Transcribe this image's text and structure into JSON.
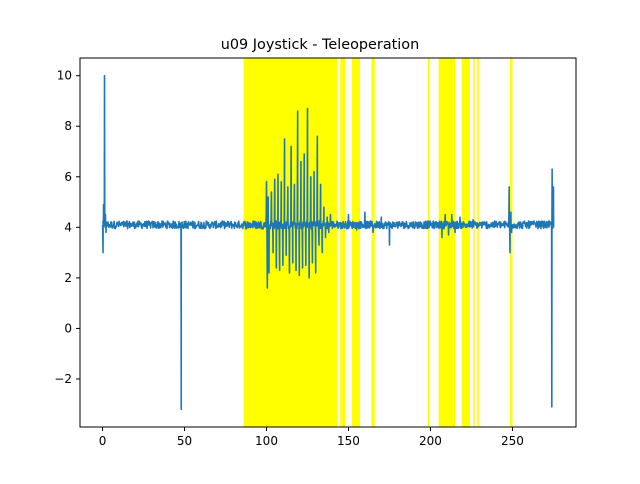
{
  "chart_data": {
    "type": "line",
    "title": "u09 Joystick - Teleoperation",
    "xlabel": "",
    "ylabel": "",
    "xlim": [
      -13.75,
      288.75
    ],
    "ylim": [
      -3.9,
      10.7
    ],
    "xticks": [
      0,
      50,
      100,
      150,
      200,
      250
    ],
    "xtick_labels": [
      "0",
      "50",
      "100",
      "150",
      "200",
      "250"
    ],
    "yticks": [
      -2,
      0,
      2,
      4,
      6,
      8,
      10
    ],
    "ytick_labels": [
      "−2",
      "0",
      "2",
      "4",
      "6",
      "8",
      "10"
    ],
    "grid": false,
    "legend": "none",
    "line_color": "#1f77b4",
    "highlight_color": "#ffff00",
    "highlight_regions": [
      [
        86,
        143
      ],
      [
        145,
        148
      ],
      [
        152,
        157
      ],
      [
        164,
        166
      ],
      [
        198.5,
        199.5
      ],
      [
        205,
        215
      ],
      [
        219,
        224
      ],
      [
        226,
        227
      ],
      [
        228.5,
        229.5
      ],
      [
        248.5,
        250
      ]
    ],
    "series": [
      {
        "baseline": 4.1,
        "noise_amplitude": 0.15,
        "x_range": [
          0,
          275
        ],
        "x": [
          0,
          0.3,
          0.6,
          0.9,
          1.2,
          1.5,
          1.8,
          2.1,
          2.4,
          3,
          5,
          20,
          40,
          47.5,
          47.8,
          48,
          48.2,
          48.5,
          60,
          86,
          95,
          99.5,
          100,
          100.5,
          101,
          101.5,
          102,
          103,
          104,
          105,
          106,
          107,
          108,
          109,
          110,
          111,
          112,
          113,
          114,
          115,
          116,
          117,
          118,
          119,
          120,
          121,
          122,
          123,
          124,
          125,
          126,
          127,
          128,
          129,
          130,
          131,
          132,
          133,
          134,
          135,
          136,
          137,
          138,
          139,
          140,
          145,
          150,
          155,
          160,
          165,
          170,
          175,
          180,
          190,
          200,
          205,
          207,
          209,
          211,
          213,
          215,
          218,
          222,
          226,
          230,
          240,
          247.5,
          248,
          248.5,
          249,
          249.5,
          250,
          255,
          260,
          265,
          272,
          273.5,
          273.8,
          274,
          274.2,
          274.4,
          274.6,
          275
        ],
        "y": [
          4.1,
          3.0,
          4.9,
          4.1,
          10.0,
          4.2,
          4.5,
          3.8,
          4.2,
          4.1,
          4.15,
          4.1,
          4.2,
          4.1,
          4.0,
          -3.2,
          4.0,
          4.2,
          4.1,
          4.2,
          4.1,
          4.2,
          5.8,
          1.6,
          5.2,
          2.2,
          4.0,
          5.4,
          3.0,
          5.9,
          2.4,
          6.1,
          2.3,
          5.8,
          2.5,
          7.5,
          2.9,
          5.6,
          2.2,
          7.2,
          2.6,
          5.7,
          2.3,
          8.6,
          2.1,
          6.6,
          2.4,
          6.9,
          2.5,
          8.7,
          2.0,
          6.0,
          2.6,
          6.2,
          2.2,
          7.6,
          3.3,
          5.7,
          3.0,
          4.8,
          3.6,
          4.4,
          3.8,
          4.5,
          4.2,
          4.1,
          4.5,
          3.9,
          4.6,
          3.8,
          4.4,
          3.3,
          4.2,
          4.0,
          4.2,
          4.1,
          3.6,
          4.5,
          3.7,
          4.5,
          3.8,
          4.4,
          4.0,
          4.3,
          4.1,
          4.1,
          4.1,
          5.6,
          3.0,
          4.6,
          3.8,
          4.1,
          4.2,
          4.1,
          4.2,
          4.15,
          4.1,
          4.0,
          -3.1,
          6.3,
          4.4,
          5.5,
          5.6
        ]
      }
    ]
  }
}
